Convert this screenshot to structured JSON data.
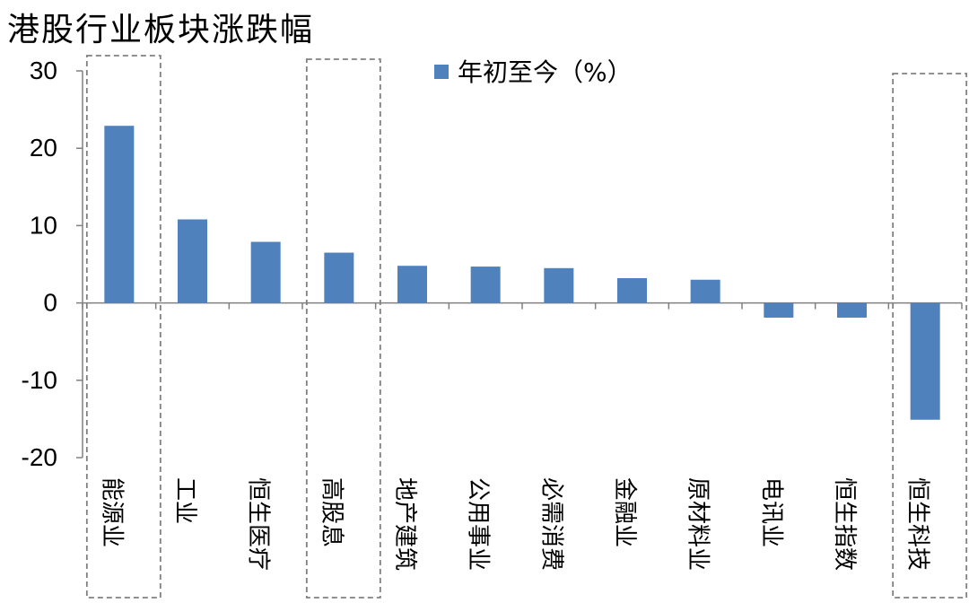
{
  "title": "港股行业板块涨跌幅",
  "colors": {
    "bar": "#4F81BD",
    "highlight_box": "#808080",
    "axis": "#808080"
  },
  "chart_data": {
    "type": "bar",
    "title": "港股行业板块涨跌幅",
    "xlabel": "",
    "ylabel": "",
    "ylim": [
      -20,
      30
    ],
    "yticks": [
      "30",
      "20",
      "10",
      "0",
      "-10",
      "-20"
    ],
    "legend": {
      "position": "top-center"
    },
    "grid": false,
    "categories": [
      "能源业",
      "工业",
      "恒生医疗",
      "高股息",
      "地产建筑",
      "公用事业",
      "必需消费",
      "金融业",
      "原材料业",
      "电讯业",
      "恒生指数",
      "恒生科技"
    ],
    "series": [
      {
        "name": "年初至今（%）",
        "values": [
          22.9,
          10.8,
          7.9,
          6.5,
          4.8,
          4.7,
          4.5,
          3.2,
          3.0,
          -1.9,
          -1.9,
          -15.1
        ]
      }
    ],
    "highlighted_categories": [
      "能源业",
      "高股息",
      "恒生科技"
    ]
  }
}
